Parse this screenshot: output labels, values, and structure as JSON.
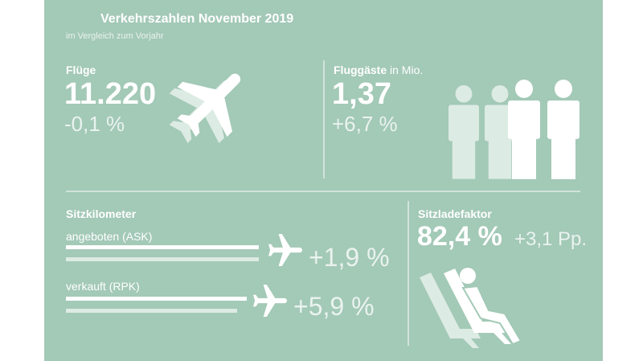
{
  "header": {
    "title": "Verkehrszahlen November 2019",
    "subtitle": "im Vergleich zum Vorjahr"
  },
  "flights": {
    "label": "Flüge",
    "value": "11.220",
    "change": "-0,1 %"
  },
  "passengers": {
    "label": "Fluggäste",
    "unit": "in Mio.",
    "value": "1,37",
    "change": "+6,7 %"
  },
  "seat_km": {
    "label": "Sitzkilometer",
    "rows": [
      {
        "label": "angeboten (ASK)",
        "change": "+1,9 %"
      },
      {
        "label": "verkauft (RPK)",
        "change": "+5,9 %"
      }
    ]
  },
  "load_factor": {
    "label": "Sitzladefaktor",
    "value": "82,4 %",
    "change": "+3,1 Pp."
  }
}
